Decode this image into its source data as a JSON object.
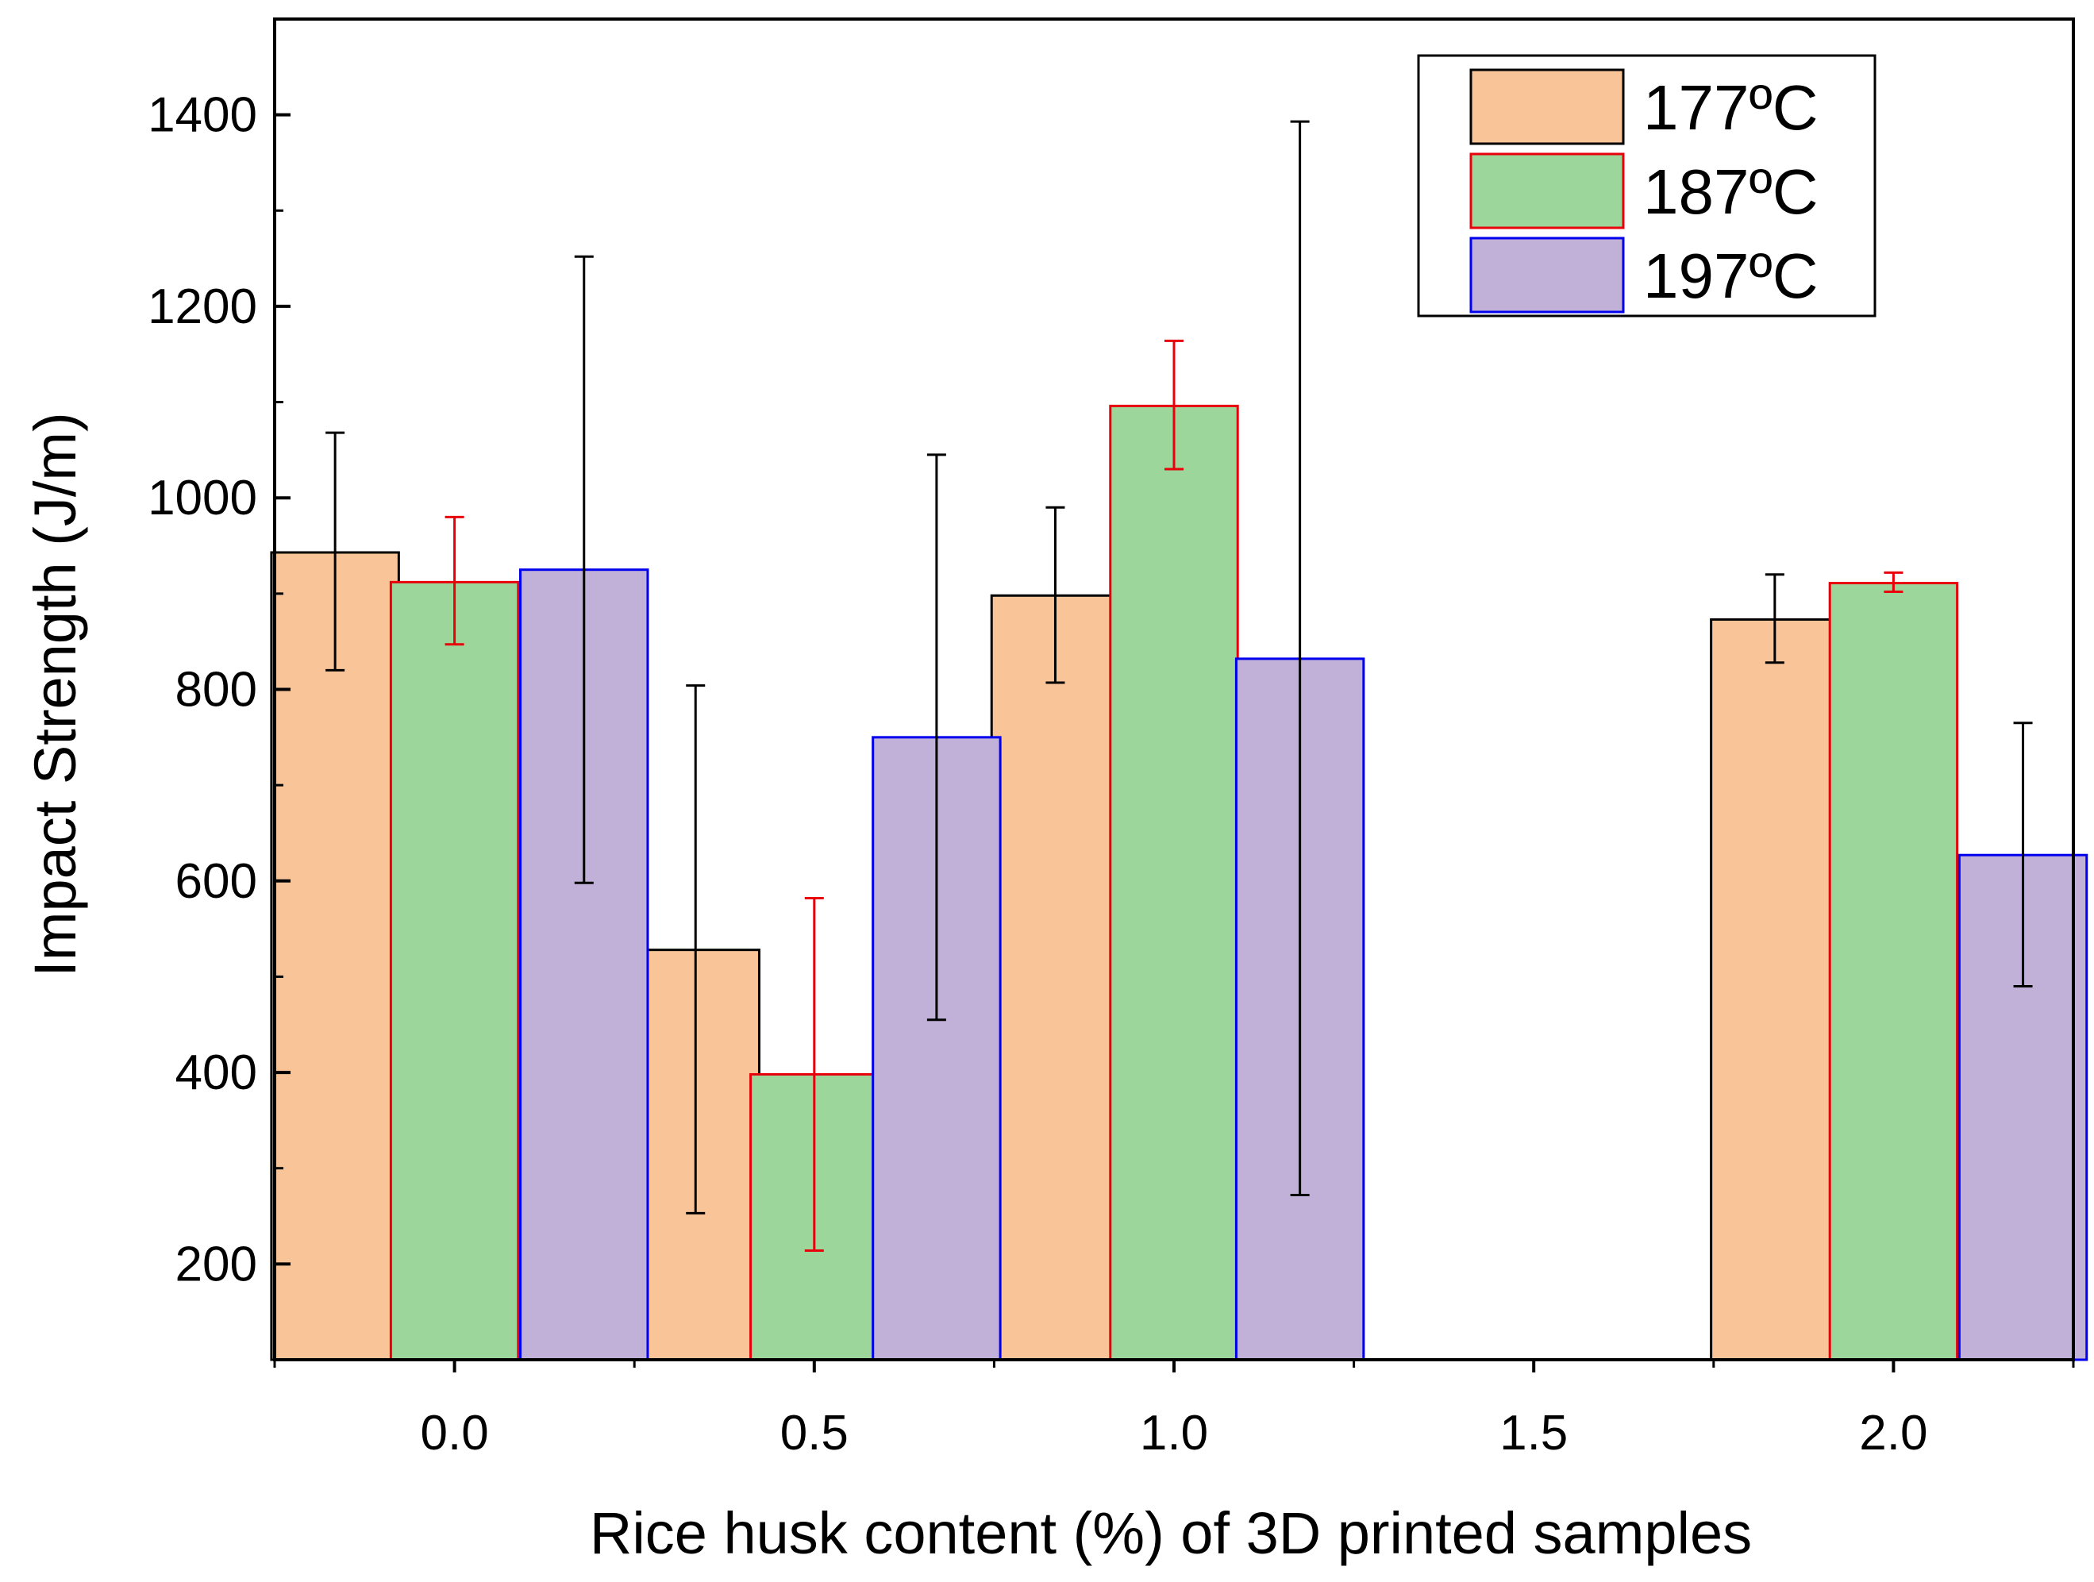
{
  "chart_data": {
    "type": "bar",
    "title": "",
    "xlabel": "Rice husk content (%) of 3D printed samples",
    "ylabel": "Impact Strength (J/m)",
    "ylim": [
      100,
      1500
    ],
    "xlim": [
      -0.25,
      2.25
    ],
    "y_ticks": [
      200,
      400,
      600,
      800,
      1000,
      1200,
      1400
    ],
    "y_tick_labels": [
      "200",
      "400",
      "600",
      "800",
      "1000",
      "1200",
      "1400"
    ],
    "x_ticks": [
      0.0,
      0.5,
      1.0,
      1.5,
      2.0
    ],
    "x_tick_labels": [
      "0.0",
      "0.5",
      "1.0",
      "1.5",
      "2.0"
    ],
    "legend_position": "top-right",
    "series": [
      {
        "name": "177ºC",
        "fill": "#f9c598",
        "edge": "#000000",
        "error_color": "#000000",
        "points": [
          {
            "x": -0.166,
            "value": 943,
            "err_low": 820,
            "err_high": 1068
          },
          {
            "x": 0.335,
            "value": 528,
            "err_low": 253,
            "err_high": 804
          },
          {
            "x": 0.835,
            "value": 898,
            "err_low": 807,
            "err_high": 990
          },
          {
            "x": 1.835,
            "value": 873,
            "err_low": 828,
            "err_high": 920
          }
        ]
      },
      {
        "name": "187ºC",
        "fill": "#9dd69b",
        "edge": "#e8000b",
        "error_color": "#e8000b",
        "points": [
          {
            "x": 0.0,
            "value": 912,
            "err_low": 847,
            "err_high": 980
          },
          {
            "x": 0.5,
            "value": 398,
            "err_low": 214,
            "err_high": 582
          },
          {
            "x": 1.0,
            "value": 1096,
            "err_low": 1030,
            "err_high": 1164
          },
          {
            "x": 2.0,
            "value": 911,
            "err_low": 902,
            "err_high": 922
          }
        ]
      },
      {
        "name": "197ºC",
        "fill": "#c1b1d8",
        "edge": "#0000ee",
        "error_color": "#000000",
        "points": [
          {
            "x": 0.18,
            "value": 925,
            "err_low": 598,
            "err_high": 1252
          },
          {
            "x": 0.67,
            "value": 750,
            "err_low": 455,
            "err_high": 1045
          },
          {
            "x": 1.175,
            "value": 832,
            "err_low": 272,
            "err_high": 1393
          },
          {
            "x": 2.18,
            "value": 627,
            "err_low": 490,
            "err_high": 765
          }
        ]
      }
    ]
  }
}
